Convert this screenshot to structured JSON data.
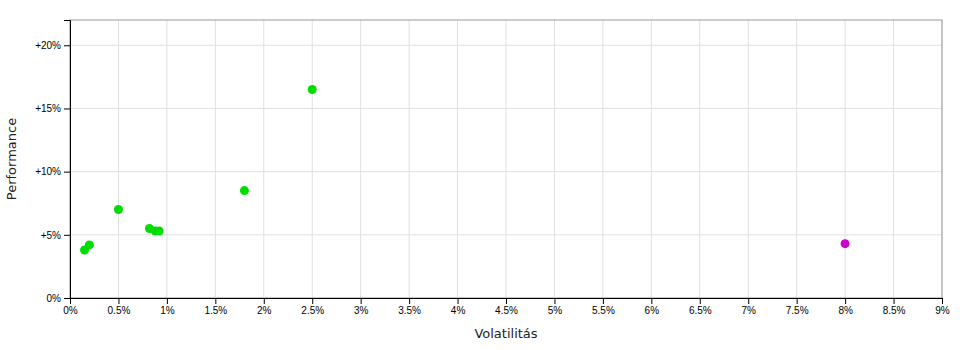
{
  "chart_data": {
    "type": "scatter",
    "x_label": "Volatilitás",
    "y_label": "Performance",
    "series": [
      {
        "color": "#00dd00",
        "x": [
          0.0015,
          0.002,
          0.005,
          0.0082,
          0.0088,
          0.0092,
          0.018,
          0.025
        ],
        "values": [
          0.038,
          0.042,
          0.07,
          0.055,
          0.053,
          0.053,
          0.085,
          0.165
        ]
      },
      {
        "color": "#cc00cc",
        "x": [
          0.08
        ],
        "values": [
          0.043
        ]
      }
    ],
    "xlim": [
      0,
      0.09
    ],
    "ylim": [
      0,
      0.22
    ],
    "xticks": [
      {
        "value": 0.0,
        "label": "0%"
      },
      {
        "value": 0.005,
        "label": "0.5%"
      },
      {
        "value": 0.01,
        "label": "1%"
      },
      {
        "value": 0.015,
        "label": "1.5%"
      },
      {
        "value": 0.02,
        "label": "2%"
      },
      {
        "value": 0.025,
        "label": "2.5%"
      },
      {
        "value": 0.03,
        "label": "3%"
      },
      {
        "value": 0.035,
        "label": "3.5%"
      },
      {
        "value": 0.04,
        "label": "4%"
      },
      {
        "value": 0.045,
        "label": "4.5%"
      },
      {
        "value": 0.05,
        "label": "5%"
      },
      {
        "value": 0.055,
        "label": "5.5%"
      },
      {
        "value": 0.06,
        "label": "6%"
      },
      {
        "value": 0.065,
        "label": "6.5%"
      },
      {
        "value": 0.07,
        "label": "7%"
      },
      {
        "value": 0.075,
        "label": "7.5%"
      },
      {
        "value": 0.08,
        "label": "8%"
      },
      {
        "value": 0.085,
        "label": "8.5%"
      },
      {
        "value": 0.09,
        "label": "9%"
      }
    ],
    "yticks": [
      {
        "value": 0.0,
        "label": "0%"
      },
      {
        "value": 0.05,
        "label": "+5%"
      },
      {
        "value": 0.1,
        "label": "+10%"
      },
      {
        "value": 0.15,
        "label": "+15%"
      },
      {
        "value": 0.2,
        "label": "+20%"
      }
    ],
    "grid": true
  }
}
